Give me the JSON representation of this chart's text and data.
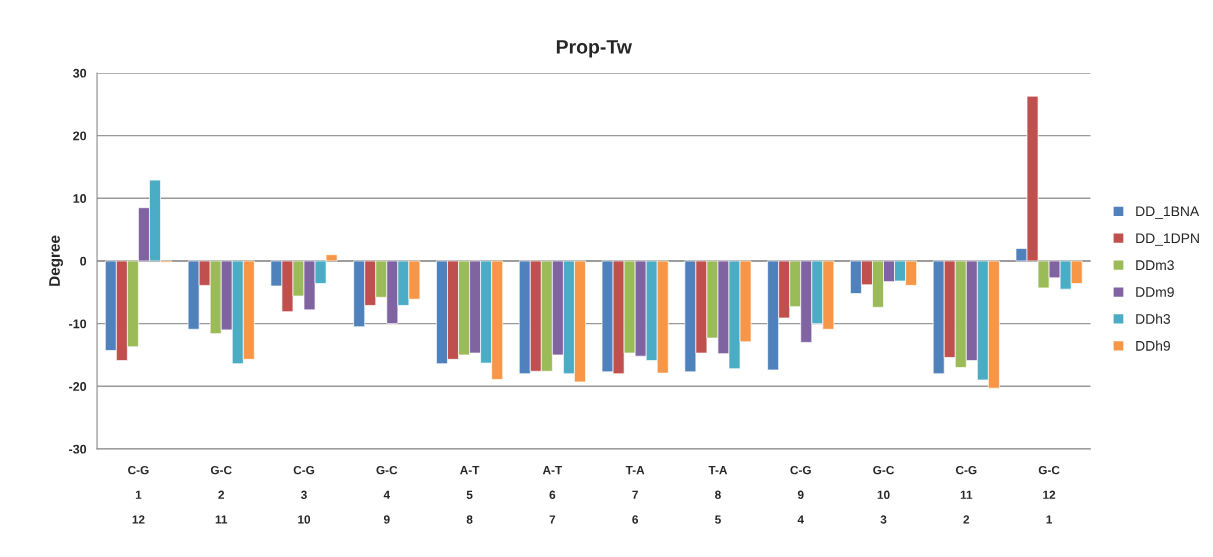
{
  "chart_data": {
    "type": "bar",
    "title": "Prop-Tw",
    "ylabel": "Degree",
    "categories": [
      "C-G\n1\n12",
      "G-C\n2\n11",
      "C-G\n3\n10",
      "G-C\n4\n9",
      "A-T\n5\n8",
      "A-T\n6\n7",
      "T-A\n7\n6",
      "T-A\n8\n5",
      "C-G\n9\n4",
      "G-C\n10\n3",
      "C-G\n11\n2",
      "G-C\n12\n1"
    ],
    "series": [
      {
        "name": "DD_1BNA",
        "color": "#4f81bd",
        "values": [
          -14.3,
          -10.9,
          -4.0,
          -10.5,
          -16.4,
          -18.0,
          -17.7,
          -17.7,
          -17.4,
          -5.2,
          -18.0,
          2.0
        ]
      },
      {
        "name": "DD_1DPN",
        "color": "#c0504d",
        "values": [
          -15.9,
          -3.9,
          -8.1,
          -7.1,
          -15.7,
          -17.6,
          -18.0,
          -14.7,
          -9.1,
          -3.8,
          -15.4,
          26.3
        ]
      },
      {
        "name": "DDm3",
        "color": "#9bbb59",
        "values": [
          -13.7,
          -11.6,
          -5.6,
          -5.8,
          -15.0,
          -17.6,
          -14.7,
          -12.3,
          -7.3,
          -7.4,
          -17.0,
          -4.3
        ]
      },
      {
        "name": "DDm9",
        "color": "#8064a2",
        "values": [
          8.5,
          -11.0,
          -7.8,
          -10.0,
          -14.7,
          -15.0,
          -15.2,
          -14.8,
          -13.0,
          -3.3,
          -15.9,
          -2.7
        ]
      },
      {
        "name": "DDh3",
        "color": "#4bacc6",
        "values": [
          12.9,
          -16.4,
          -3.6,
          -7.1,
          -16.3,
          -18.0,
          -15.9,
          -17.2,
          -10.0,
          -3.2,
          -19.0,
          -4.5
        ]
      },
      {
        "name": "DDh9",
        "color": "#f79646",
        "values": [
          -0.2,
          -15.7,
          1.0,
          -6.1,
          -18.9,
          -19.3,
          -17.9,
          -12.9,
          -10.9,
          -3.9,
          -20.3,
          -3.6
        ]
      }
    ],
    "ylim": [
      -30,
      30
    ],
    "yticks": [
      -30,
      -20,
      -10,
      0,
      10,
      20,
      30
    ],
    "grid": "y",
    "legend": "right"
  }
}
